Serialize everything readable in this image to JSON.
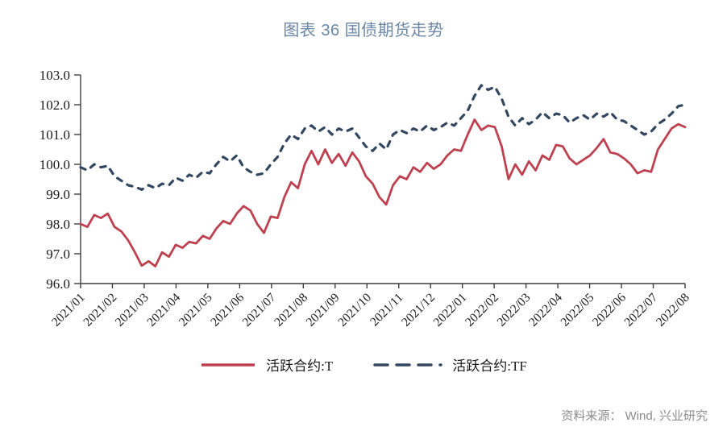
{
  "source_note": "资料来源： Wind, 兴业研究",
  "colors": {
    "title": "#6B87A5",
    "axis": "#3d3d3d",
    "label_text": "#1a1a1a",
    "source_text": "#8c8c8c",
    "series_t": "#BE4150",
    "series_tf": "#334760"
  },
  "chart_data": {
    "type": "line",
    "title": "图表 36 国债期货走势",
    "xlabel": "",
    "ylabel": "",
    "ylim": [
      96.0,
      103.0
    ],
    "y_tick_labels": [
      "96.0",
      "97.0",
      "98.0",
      "99.0",
      "100.0",
      "101.0",
      "102.0",
      "103.0"
    ],
    "x_tick_labels": [
      "2021/01",
      "2021/02",
      "2021/03",
      "2021/04",
      "2021/05",
      "2021/06",
      "2021/07",
      "2021/08",
      "2021/09",
      "2021/10",
      "2021/11",
      "2021/12",
      "2022/01",
      "2022/02",
      "2022/03",
      "2022/04",
      "2022/05",
      "2022/06",
      "2022/07",
      "2022/08"
    ],
    "x_sampling": "weekly, Jan 2021 to mid Aug 2022",
    "grid": false,
    "legend_position": "bottom",
    "series": [
      {
        "name": "活跃合约:T",
        "style": "solid",
        "color": "#BE4150",
        "values": [
          98.0,
          97.9,
          98.3,
          98.2,
          98.35,
          97.9,
          97.75,
          97.45,
          97.05,
          96.6,
          96.75,
          96.58,
          97.05,
          96.9,
          97.3,
          97.2,
          97.4,
          97.35,
          97.6,
          97.5,
          97.85,
          98.1,
          98.0,
          98.35,
          98.6,
          98.45,
          98.0,
          97.7,
          98.25,
          98.2,
          98.9,
          99.4,
          99.2,
          100.0,
          100.45,
          100.0,
          100.5,
          100.05,
          100.35,
          99.95,
          100.4,
          100.1,
          99.6,
          99.35,
          98.9,
          98.65,
          99.3,
          99.6,
          99.5,
          99.9,
          99.75,
          100.05,
          99.85,
          100.0,
          100.3,
          100.5,
          100.45,
          101.0,
          101.5,
          101.15,
          101.3,
          101.25,
          100.6,
          99.5,
          100.0,
          99.65,
          100.1,
          99.8,
          100.3,
          100.15,
          100.65,
          100.6,
          100.2,
          100.0,
          100.15,
          100.3,
          100.55,
          100.85,
          100.4,
          100.35,
          100.2,
          100.0,
          99.7,
          99.8,
          99.75,
          100.5,
          100.85,
          101.2,
          101.35,
          101.25
        ]
      },
      {
        "name": "活跃合约:TF",
        "style": "dashed",
        "color": "#334760",
        "values": [
          99.9,
          99.8,
          100.0,
          99.9,
          99.95,
          99.6,
          99.45,
          99.3,
          99.25,
          99.15,
          99.3,
          99.2,
          99.35,
          99.3,
          99.55,
          99.45,
          99.65,
          99.55,
          99.75,
          99.7,
          100.0,
          100.25,
          100.1,
          100.3,
          99.9,
          99.75,
          99.65,
          99.7,
          100.0,
          100.25,
          100.7,
          101.0,
          100.85,
          101.2,
          101.3,
          101.1,
          101.25,
          101.0,
          101.2,
          101.1,
          101.2,
          100.9,
          100.6,
          100.45,
          100.7,
          100.5,
          101.0,
          101.15,
          101.05,
          101.2,
          101.1,
          101.3,
          101.15,
          101.25,
          101.4,
          101.3,
          101.55,
          101.8,
          102.3,
          102.65,
          102.5,
          102.6,
          102.2,
          101.6,
          101.3,
          101.55,
          101.35,
          101.5,
          101.75,
          101.55,
          101.7,
          101.65,
          101.4,
          101.55,
          101.65,
          101.5,
          101.7,
          101.6,
          101.75,
          101.5,
          101.45,
          101.3,
          101.15,
          101.0,
          101.1,
          101.35,
          101.5,
          101.7,
          101.95,
          102.0
        ]
      }
    ]
  }
}
